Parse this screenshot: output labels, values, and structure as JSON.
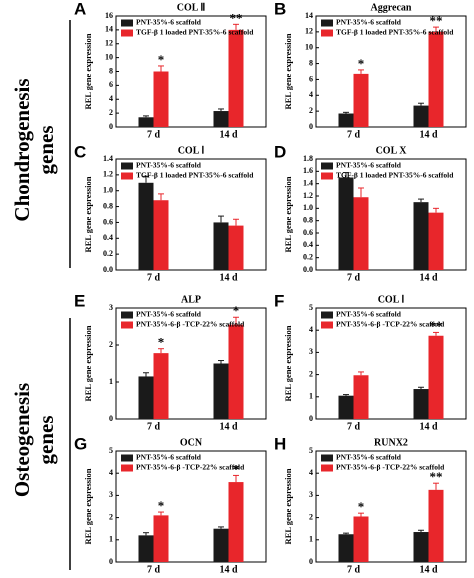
{
  "side_labels": [
    [
      "Chondrogenesis",
      "genes"
    ],
    [
      "Osteogenesis",
      "genes"
    ]
  ],
  "chart_data": [
    {
      "type": "bar",
      "panel": "A",
      "title": "COL Ⅱ",
      "ylabel": "REL gene expression",
      "categories": [
        "7 d",
        "14 d"
      ],
      "series": [
        {
          "name": "PNT-35%-6 scaffold",
          "color": "#1a1a1a",
          "values": [
            1.4,
            2.3
          ],
          "errors": [
            0.2,
            0.3
          ]
        },
        {
          "name": "TGF-β 1 loaded PNT-35%-6 scaffold",
          "color": "#e8262b",
          "values": [
            8,
            14
          ],
          "errors": [
            0.8,
            0.8
          ]
        }
      ],
      "annotations": [
        "*",
        "**"
      ],
      "ylim": [
        0,
        16
      ],
      "yticks": [
        0,
        2,
        4,
        6,
        8,
        10,
        12,
        14,
        16
      ]
    },
    {
      "type": "bar",
      "panel": "B",
      "title": "Aggrecan",
      "ylabel": "REL gene expression",
      "categories": [
        "7 d",
        "14 d"
      ],
      "series": [
        {
          "name": "PNT-35%-6 scaffold",
          "color": "#1a1a1a",
          "values": [
            1.7,
            2.7
          ],
          "errors": [
            0.15,
            0.3
          ]
        },
        {
          "name": "TGF-β 1 loaded PNT-35%-6 scaffold",
          "color": "#e8262b",
          "values": [
            6.7,
            12
          ],
          "errors": [
            0.5,
            0.6
          ]
        }
      ],
      "annotations": [
        "*",
        "**"
      ],
      "ylim": [
        0,
        14
      ],
      "yticks": [
        0,
        2,
        4,
        6,
        8,
        10,
        12,
        14
      ]
    },
    {
      "type": "bar",
      "panel": "C",
      "title": "COL Ⅰ",
      "ylabel": "REL gene expression",
      "categories": [
        "7 d",
        "14 d"
      ],
      "series": [
        {
          "name": "PNT-35%-6 scaffold",
          "color": "#1a1a1a",
          "values": [
            1.1,
            0.6
          ],
          "errors": [
            0.08,
            0.08
          ]
        },
        {
          "name": "TGF-β 1 loaded PNT-35%-6 scaffold",
          "color": "#e8262b",
          "values": [
            0.88,
            0.56
          ],
          "errors": [
            0.08,
            0.08
          ]
        }
      ],
      "annotations": [
        null,
        null
      ],
      "ylim": [
        0,
        1.4
      ],
      "yticks": [
        {
          "value": 0,
          "label": "0.0"
        },
        0.2,
        0.4,
        0.6,
        0.8,
        {
          "value": 1,
          "label": "1.0"
        },
        1.2,
        1.4
      ]
    },
    {
      "type": "bar",
      "panel": "D",
      "title": "COL X",
      "ylabel": "REL gene expression",
      "categories": [
        "7 d",
        "14 d"
      ],
      "series": [
        {
          "name": "PNT-35%-6 scaffold",
          "color": "#1a1a1a",
          "values": [
            1.5,
            1.1
          ],
          "errors": [
            0.08,
            0.05
          ]
        },
        {
          "name": "TGF-β 1 loaded PNT-35%-6 scaffold",
          "color": "#e8262b",
          "values": [
            1.18,
            0.93
          ],
          "errors": [
            0.15,
            0.07
          ]
        }
      ],
      "annotations": [
        null,
        null
      ],
      "ylim": [
        0,
        1.8
      ],
      "yticks": [
        {
          "value": 0,
          "label": "0.0"
        },
        0.2,
        0.4,
        0.6,
        0.8,
        {
          "value": 1,
          "label": "1.0"
        },
        1.2,
        1.4,
        1.6,
        1.8
      ]
    },
    {
      "type": "bar",
      "panel": "E",
      "title": "ALP",
      "ylabel": "REL gene expression",
      "categories": [
        "7 d",
        "14 d"
      ],
      "series": [
        {
          "name": "PNT-35%-6 scaffold",
          "color": "#1a1a1a",
          "values": [
            1.15,
            1.5
          ],
          "errors": [
            0.1,
            0.08
          ]
        },
        {
          "name": "PNT-35%-6-β -TCP-22% scaffold",
          "color": "#e8262b",
          "values": [
            1.78,
            2.55
          ],
          "errors": [
            0.12,
            0.2
          ]
        }
      ],
      "annotations": [
        "*",
        "*"
      ],
      "ylim": [
        0,
        3
      ],
      "yticks": [
        0,
        1,
        2,
        3
      ]
    },
    {
      "type": "bar",
      "panel": "F",
      "title": "COL Ⅰ",
      "ylabel": "REL gene expression",
      "categories": [
        "7 d",
        "14 d"
      ],
      "series": [
        {
          "name": "PNT-35%-6 scaffold",
          "color": "#1a1a1a",
          "values": [
            1.05,
            1.35
          ],
          "errors": [
            0.05,
            0.08
          ]
        },
        {
          "name": "PNT-35%-6-β -TCP-22% scaffold",
          "color": "#e8262b",
          "values": [
            1.97,
            3.75
          ],
          "errors": [
            0.15,
            0.15
          ]
        }
      ],
      "annotations": [
        null,
        "**"
      ],
      "ylim": [
        0,
        5
      ],
      "yticks": [
        0,
        1,
        2,
        3,
        4,
        5
      ]
    },
    {
      "type": "bar",
      "panel": "G",
      "title": "OCN",
      "ylabel": "REL gene expression",
      "categories": [
        "7 d",
        "14 d"
      ],
      "series": [
        {
          "name": "PNT-35%-6 scaffold",
          "color": "#1a1a1a",
          "values": [
            1.2,
            1.5
          ],
          "errors": [
            0.12,
            0.08
          ]
        },
        {
          "name": "PNT-35%-6-β -TCP-22% scaffold",
          "color": "#e8262b",
          "values": [
            2.1,
            3.6
          ],
          "errors": [
            0.15,
            0.3
          ]
        }
      ],
      "annotations": [
        "*",
        "*"
      ],
      "ylim": [
        0,
        5
      ],
      "yticks": [
        0,
        1,
        2,
        3,
        4,
        5
      ]
    },
    {
      "type": "bar",
      "panel": "H",
      "title": "RUNX2",
      "ylabel": "REL gene expression",
      "categories": [
        "7 d",
        "14 d"
      ],
      "series": [
        {
          "name": "PNT-35%-6 scaffold",
          "color": "#1a1a1a",
          "values": [
            1.25,
            1.35
          ],
          "errors": [
            0.05,
            0.08
          ]
        },
        {
          "name": "PNT-35%-6-β -TCP-22% scaffold",
          "color": "#e8262b",
          "values": [
            2.05,
            3.25
          ],
          "errors": [
            0.15,
            0.3
          ]
        }
      ],
      "annotations": [
        "*",
        "**"
      ],
      "ylim": [
        0,
        5
      ],
      "yticks": [
        0,
        1,
        2,
        3,
        4,
        5
      ]
    }
  ]
}
